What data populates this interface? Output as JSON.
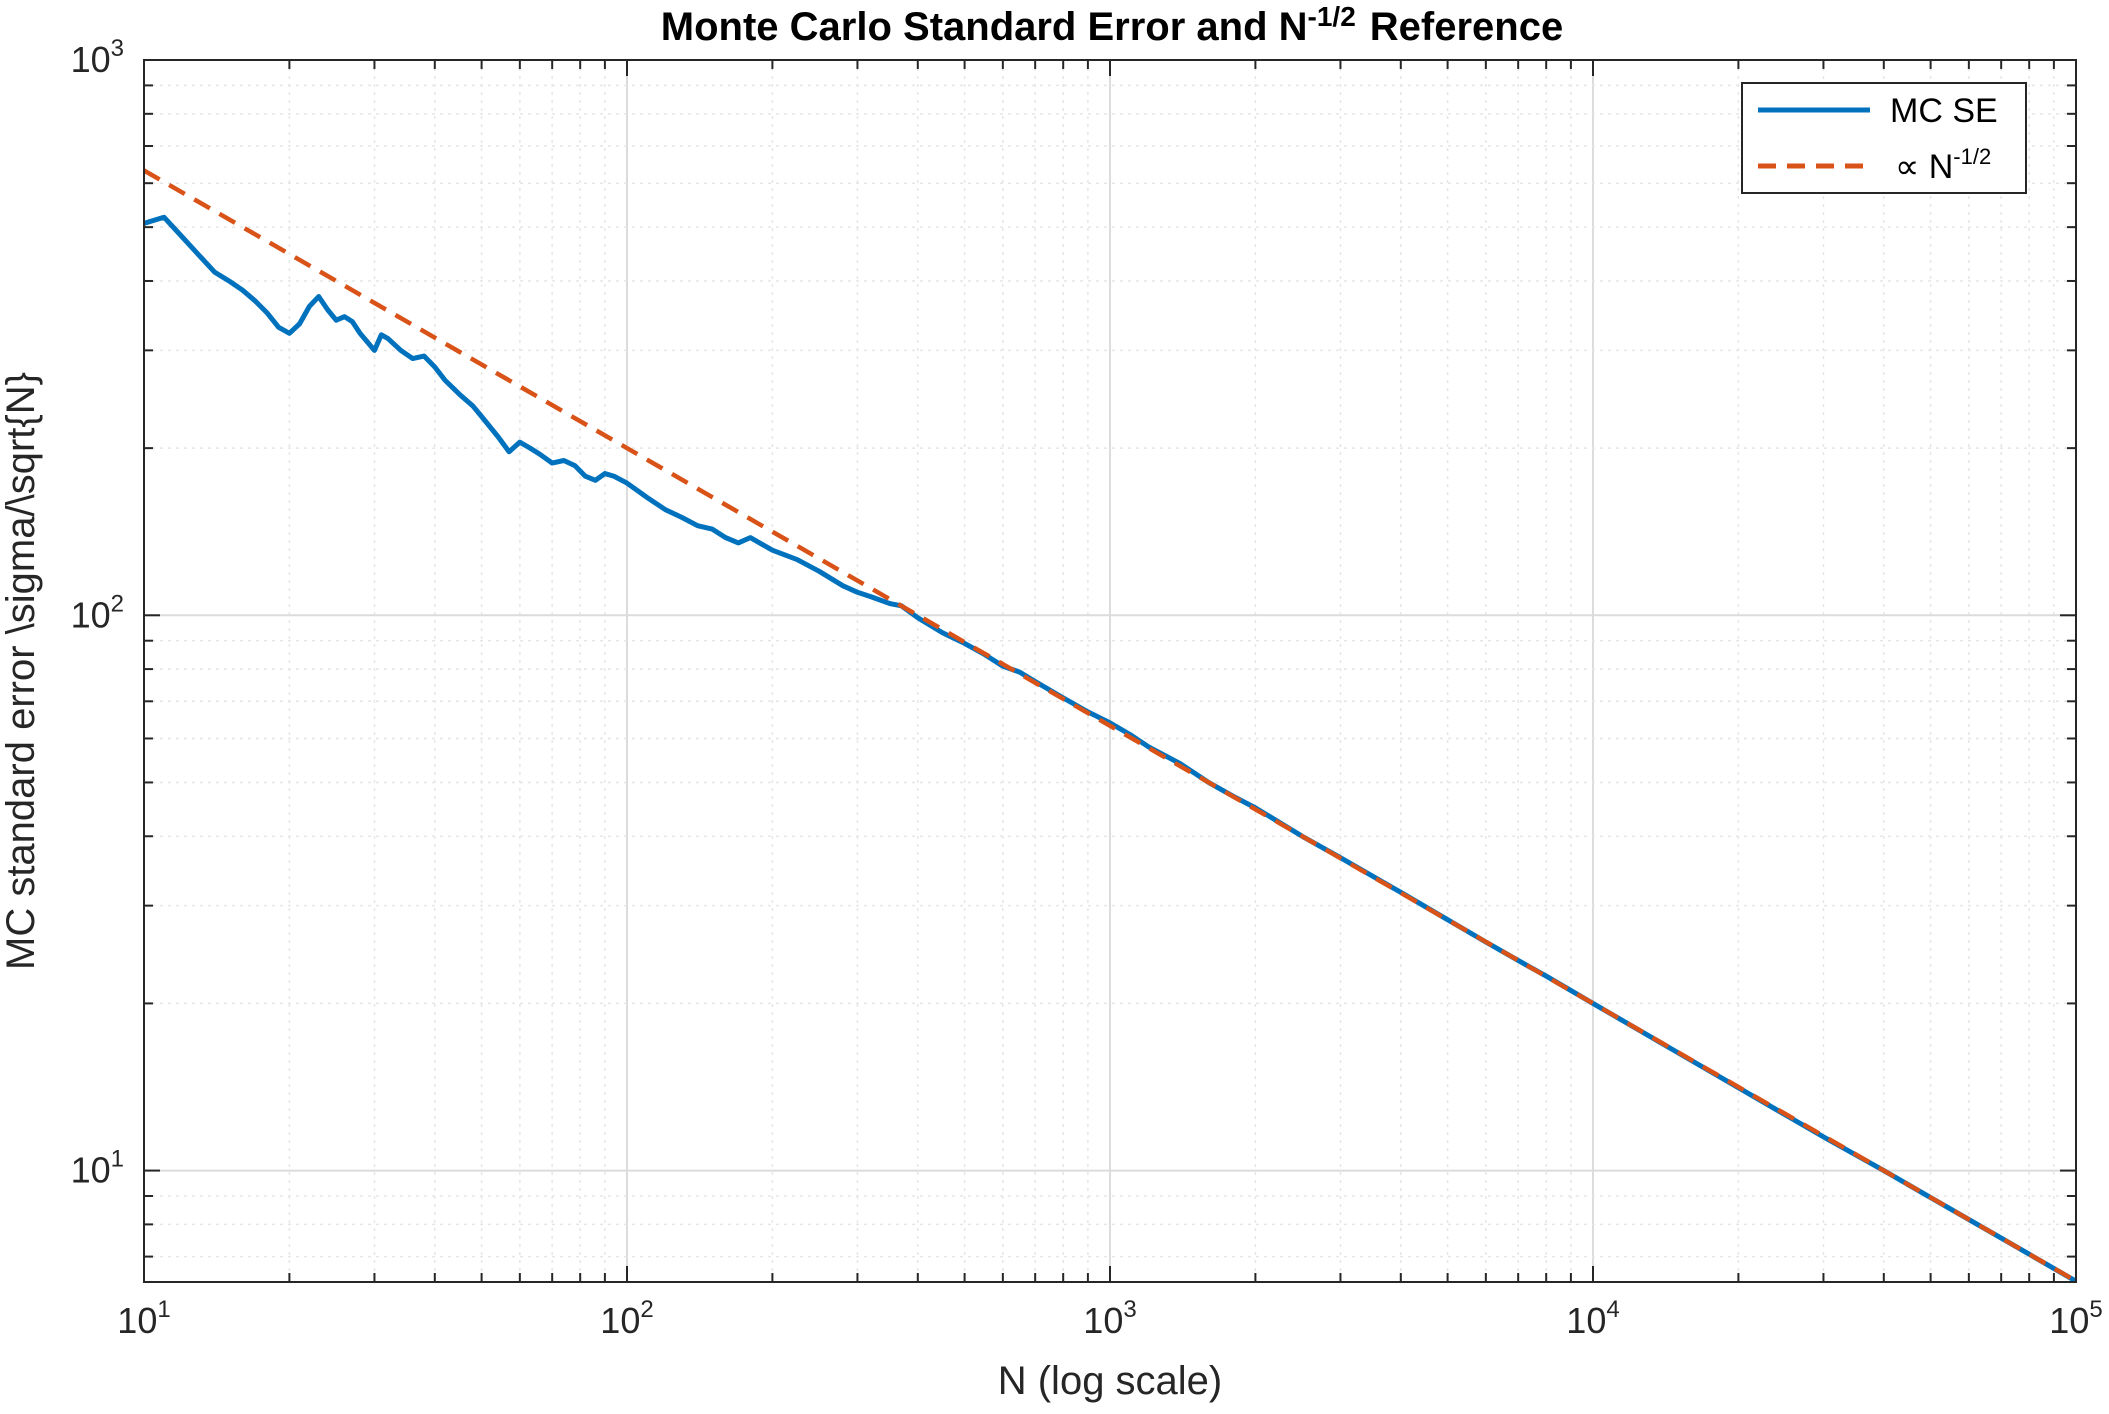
{
  "chart_data": {
    "type": "line",
    "title": "Monte Carlo Standard Error and N",
    "title_exponent": "-1/2",
    "title_suffix": "Reference",
    "xlabel": "N (log scale)",
    "ylabel": "MC standard error \\sigma/\\sqrt{N}",
    "xscale": "log",
    "yscale": "log",
    "xlim": [
      10,
      100000
    ],
    "ylim": [
      6.3,
      1000
    ],
    "grid": true,
    "legend_position": "top-right",
    "x_ticks": [
      {
        "base": "10",
        "exp": "1"
      },
      {
        "base": "10",
        "exp": "2"
      },
      {
        "base": "10",
        "exp": "3"
      },
      {
        "base": "10",
        "exp": "4"
      },
      {
        "base": "10",
        "exp": "5"
      }
    ],
    "y_ticks": [
      {
        "base": "10",
        "exp": "1"
      },
      {
        "base": "10",
        "exp": "2"
      },
      {
        "base": "10",
        "exp": "3"
      }
    ],
    "series": [
      {
        "name": "MC SE",
        "color": "#0072BD",
        "style": "solid",
        "points": [
          [
            10,
            508
          ],
          [
            11,
            521
          ],
          [
            12,
            480
          ],
          [
            13,
            445
          ],
          [
            14,
            415
          ],
          [
            15,
            400
          ],
          [
            16,
            385
          ],
          [
            17,
            368
          ],
          [
            18,
            350
          ],
          [
            19,
            330
          ],
          [
            20,
            322
          ],
          [
            21,
            335
          ],
          [
            22,
            360
          ],
          [
            23,
            375
          ],
          [
            24,
            355
          ],
          [
            25,
            340
          ],
          [
            26,
            345
          ],
          [
            27,
            338
          ],
          [
            28,
            322
          ],
          [
            30,
            300
          ],
          [
            31,
            320
          ],
          [
            32,
            315
          ],
          [
            34,
            300
          ],
          [
            36,
            290
          ],
          [
            38,
            293
          ],
          [
            40,
            280
          ],
          [
            42,
            265
          ],
          [
            45,
            250
          ],
          [
            48,
            238
          ],
          [
            50,
            228
          ],
          [
            54,
            210
          ],
          [
            57,
            197
          ],
          [
            60,
            205
          ],
          [
            63,
            200
          ],
          [
            66,
            195
          ],
          [
            70,
            188
          ],
          [
            74,
            190
          ],
          [
            78,
            186
          ],
          [
            82,
            178
          ],
          [
            86,
            175
          ],
          [
            90,
            180
          ],
          [
            94,
            178
          ],
          [
            100,
            173
          ],
          [
            110,
            163
          ],
          [
            120,
            155
          ],
          [
            130,
            150
          ],
          [
            140,
            145
          ],
          [
            150,
            143
          ],
          [
            160,
            138
          ],
          [
            170,
            135
          ],
          [
            180,
            138
          ],
          [
            200,
            131
          ],
          [
            225,
            126
          ],
          [
            250,
            120
          ],
          [
            280,
            113
          ],
          [
            300,
            110
          ],
          [
            320,
            108
          ],
          [
            350,
            105
          ],
          [
            370,
            104
          ],
          [
            400,
            99
          ],
          [
            450,
            93
          ],
          [
            500,
            89
          ],
          [
            550,
            85
          ],
          [
            600,
            81
          ],
          [
            650,
            79
          ],
          [
            700,
            76
          ],
          [
            800,
            71
          ],
          [
            900,
            67
          ],
          [
            1000,
            64
          ],
          [
            1100,
            61
          ],
          [
            1200,
            58
          ],
          [
            1400,
            54
          ],
          [
            1600,
            50
          ],
          [
            1800,
            47.2
          ],
          [
            2000,
            45
          ],
          [
            2500,
            40
          ],
          [
            3000,
            36.6
          ],
          [
            4000,
            31.7
          ],
          [
            5000,
            28.3
          ],
          [
            6000,
            25.8
          ],
          [
            7000,
            23.9
          ],
          [
            8000,
            22.4
          ],
          [
            10000,
            20
          ],
          [
            15000,
            16.3
          ],
          [
            20000,
            14.1
          ],
          [
            30000,
            11.5
          ],
          [
            40000,
            10
          ],
          [
            50000,
            8.94
          ],
          [
            70000,
            7.56
          ],
          [
            100000,
            6.32
          ]
        ]
      },
      {
        "name": "∝ N",
        "name_exponent": "-1/2",
        "color": "#D95319",
        "style": "dashed",
        "points": [
          [
            10,
            632.5
          ],
          [
            100000,
            6.325
          ]
        ]
      }
    ]
  }
}
